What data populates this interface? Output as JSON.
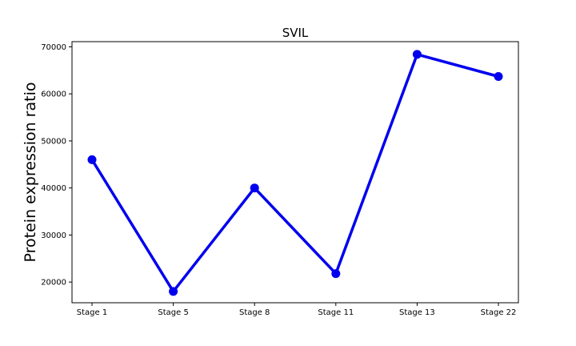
{
  "chart_data": {
    "type": "line",
    "title": "SVIL",
    "xlabel": "",
    "ylabel": "Protein expression ratio",
    "categories": [
      "Stage 1",
      "Stage 5",
      "Stage 8",
      "Stage 11",
      "Stage 13",
      "Stage 22"
    ],
    "series": [
      {
        "values": [
          46000,
          18000,
          40000,
          21800,
          68400,
          63700
        ],
        "color": "#0000ee"
      }
    ],
    "ylim": [
      15600,
      71100
    ],
    "yticks": [
      20000,
      30000,
      40000,
      50000,
      60000,
      70000
    ],
    "ytick_labels": [
      "20000",
      "30000",
      "40000",
      "50000",
      "60000",
      "70000"
    ],
    "grid": false,
    "legend": false
  }
}
